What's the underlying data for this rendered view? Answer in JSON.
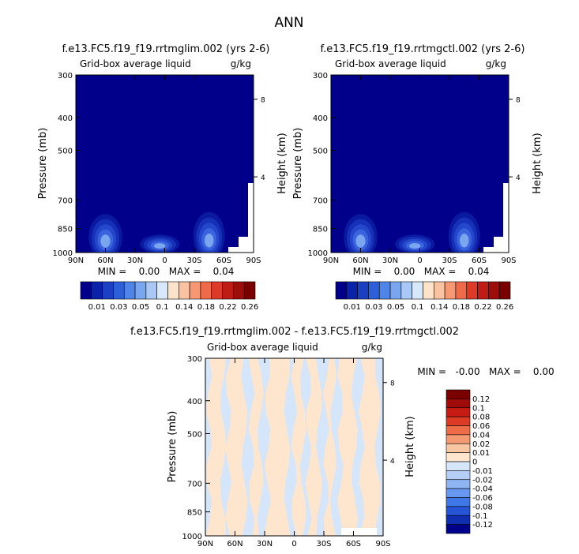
{
  "figure": {
    "title": "ANN"
  },
  "colors": {
    "background": "#00008b",
    "positive_scale": [
      "#00008b",
      "#0a22a8",
      "#1a3fc2",
      "#2d5fd8",
      "#4f84e8",
      "#7aa6f0",
      "#a9c8f6",
      "#d8e8fb",
      "#fde3c9",
      "#f9c2a0",
      "#f69872",
      "#ee6a48",
      "#dd3a28",
      "#c01c16",
      "#9c0d0b",
      "#7a0000"
    ],
    "diff_scale": [
      "#00008b",
      "#0f2fb0",
      "#2555d6",
      "#3f78e6",
      "#6797ee",
      "#8eb4f2",
      "#b4cef6",
      "#d6e6fa",
      "#fde6cd",
      "#f9c6a3",
      "#f49a73",
      "#ee6d49",
      "#de3b27",
      "#c51b13",
      "#9e0b08",
      "#7a0000"
    ]
  },
  "chart_data": [
    {
      "type": "heatmap",
      "title": "f.e13.FC5.f19_f19.rrtmglim.002 (yrs 2-6)",
      "subtitle_left": "Grid-box average liquid",
      "subtitle_right": "g/kg",
      "xlabel": "",
      "ylabel": "Pressure (mb)",
      "ylabel_right": "Height (km)",
      "x_ticks": [
        "90N",
        "60N",
        "30N",
        "0",
        "30S",
        "60S",
        "90S"
      ],
      "x_values": [
        90,
        60,
        30,
        0,
        -30,
        -60,
        -90
      ],
      "y_ticks": [
        "300",
        "400",
        "500",
        "700",
        "850",
        "1000"
      ],
      "y_values": [
        300,
        400,
        500,
        700,
        850,
        1000
      ],
      "height_ticks": [
        "8",
        "4"
      ],
      "height_values": [
        8,
        4
      ],
      "ylim": [
        1000,
        300
      ],
      "xlim": [
        90,
        -90
      ],
      "min_max_text": "MIN =    0.00   MAX =    0.04",
      "min": 0.0,
      "max": 0.04,
      "legend_labels": [
        "0.01",
        "0.03",
        "0.05",
        "0.1",
        "0.14",
        "0.18",
        "0.22",
        "0.26"
      ],
      "legend_levels": [
        0.01,
        0.02,
        0.03,
        0.04,
        0.05,
        0.07,
        0.1,
        0.12,
        0.14,
        0.16,
        0.18,
        0.2,
        0.22,
        0.24,
        0.26
      ],
      "features": [
        {
          "lat": 60,
          "p": 900,
          "rx": 17,
          "rp": 220
        },
        {
          "lat": -45,
          "p": 895,
          "rx": 16,
          "rp": 230
        },
        {
          "lat": 5,
          "p": 945,
          "rx": 20,
          "rp": 100
        }
      ]
    },
    {
      "type": "heatmap",
      "title": "f.e13.FC5.f19_f19.rrtmgctl.002 (yrs 2-6)",
      "subtitle_left": "Grid-box average liquid",
      "subtitle_right": "g/kg",
      "xlabel": "",
      "ylabel": "Pressure (mb)",
      "ylabel_right": "Height (km)",
      "x_ticks": [
        "90N",
        "60N",
        "30N",
        "0",
        "30S",
        "60S",
        "90S"
      ],
      "x_values": [
        90,
        60,
        30,
        0,
        -30,
        -60,
        -90
      ],
      "y_ticks": [
        "300",
        "400",
        "500",
        "700",
        "850",
        "1000"
      ],
      "y_values": [
        300,
        400,
        500,
        700,
        850,
        1000
      ],
      "height_ticks": [
        "8",
        "4"
      ],
      "height_values": [
        8,
        4
      ],
      "ylim": [
        1000,
        300
      ],
      "xlim": [
        90,
        -90
      ],
      "min_max_text": "MIN =    0.00   MAX =    0.04",
      "min": 0.0,
      "max": 0.04,
      "legend_labels": [
        "0.01",
        "0.03",
        "0.05",
        "0.1",
        "0.14",
        "0.18",
        "0.22",
        "0.26"
      ],
      "legend_levels": [
        0.01,
        0.02,
        0.03,
        0.04,
        0.05,
        0.07,
        0.1,
        0.12,
        0.14,
        0.16,
        0.18,
        0.2,
        0.22,
        0.24,
        0.26
      ],
      "features": [
        {
          "lat": 60,
          "p": 900,
          "rx": 17,
          "rp": 220
        },
        {
          "lat": -45,
          "p": 895,
          "rx": 16,
          "rp": 230
        },
        {
          "lat": 5,
          "p": 945,
          "rx": 20,
          "rp": 100
        }
      ]
    },
    {
      "type": "heatmap",
      "title": "f.e13.FC5.f19_f19.rrtmglim.002 - f.e13.FC5.f19_f19.rrtmgctl.002",
      "subtitle_left": "Grid-box average liquid",
      "subtitle_right": "g/kg",
      "xlabel": "",
      "ylabel": "Pressure (mb)",
      "ylabel_right": "Height (km)",
      "x_ticks": [
        "90N",
        "60N",
        "30N",
        "0",
        "30S",
        "60S",
        "90S"
      ],
      "x_values": [
        90,
        60,
        30,
        0,
        -30,
        -60,
        -90
      ],
      "y_ticks": [
        "300",
        "400",
        "500",
        "700",
        "850",
        "1000"
      ],
      "y_values": [
        300,
        400,
        500,
        700,
        850,
        1000
      ],
      "height_ticks": [
        "8",
        "4"
      ],
      "height_values": [
        8,
        4
      ],
      "ylim": [
        1000,
        300
      ],
      "xlim": [
        90,
        -90
      ],
      "min_max_text": "MIN =   -0.00   MAX =    0.00",
      "min": -0.0,
      "max": 0.0,
      "legend_labels": [
        "0.12",
        "0.1",
        "0.08",
        "0.06",
        "0.04",
        "0.02",
        "0.01",
        "0",
        "-0.01",
        "-0.02",
        "-0.04",
        "-0.06",
        "-0.08",
        "-0.1",
        "-0.12"
      ],
      "legend_levels": [
        0.12,
        0.1,
        0.08,
        0.06,
        0.04,
        0.02,
        0.01,
        0,
        -0.01,
        -0.02,
        -0.04,
        -0.06,
        -0.08,
        -0.1,
        -0.12
      ]
    }
  ]
}
